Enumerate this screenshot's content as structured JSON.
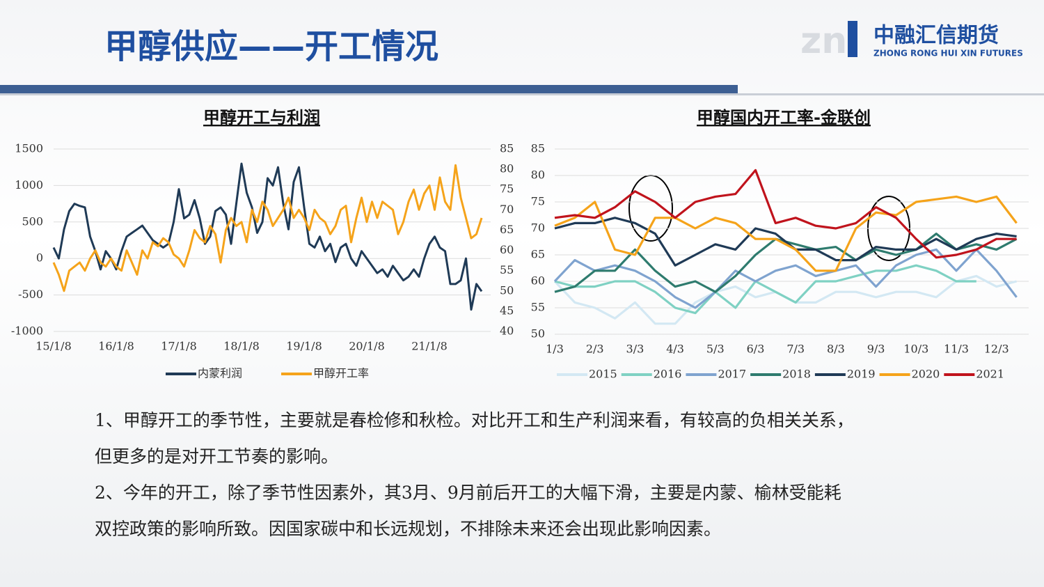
{
  "header": {
    "title": "甲醇供应——开工情况",
    "logo": "中融汇信期货",
    "logo_sub": "ZHONG RONG HUI XIN FUTURES"
  },
  "chart_data": [
    {
      "type": "line",
      "title": "甲醇开工与利润",
      "grid": true,
      "legend": "bottom",
      "categories": [
        "15/1/8",
        null,
        null,
        null,
        null,
        null,
        null,
        null,
        null,
        null,
        null,
        null,
        "16/1/8",
        null,
        null,
        null,
        null,
        null,
        null,
        null,
        null,
        null,
        null,
        null,
        "17/1/8",
        null,
        null,
        null,
        null,
        null,
        null,
        null,
        null,
        null,
        null,
        null,
        "18/1/8",
        null,
        null,
        null,
        null,
        null,
        null,
        null,
        null,
        null,
        null,
        null,
        "19/1/8",
        null,
        null,
        null,
        null,
        null,
        null,
        null,
        null,
        null,
        null,
        null,
        "20/1/8",
        null,
        null,
        null,
        null,
        null,
        null,
        null,
        null,
        null,
        null,
        null,
        "21/1/8",
        null,
        null,
        null,
        null,
        null,
        null,
        null,
        null,
        null,
        null
      ],
      "ylim": [
        -1000,
        1500
      ],
      "yticks": [
        -1000,
        -500,
        0,
        500,
        1000,
        1500
      ],
      "y2lim": [
        40,
        85
      ],
      "y2ticks": [
        40,
        45,
        50,
        55,
        60,
        65,
        70,
        75,
        80,
        85
      ],
      "series": [
        {
          "name": "内蒙利润",
          "color": "#1f3a56",
          "values": [
            150,
            0,
            400,
            650,
            750,
            720,
            700,
            300,
            100,
            -150,
            100,
            0,
            -150,
            100,
            300,
            350,
            400,
            450,
            350,
            250,
            200,
            150,
            200,
            500,
            950,
            550,
            600,
            800,
            550,
            200,
            300,
            650,
            700,
            600,
            200,
            750,
            1300,
            900,
            700,
            350,
            500,
            1100,
            1000,
            1250,
            750,
            400,
            1050,
            1250,
            700,
            200,
            150,
            300,
            100,
            200,
            -50,
            150,
            200,
            0,
            -100,
            100,
            0,
            -100,
            -200,
            -150,
            -250,
            -100,
            -200,
            -300,
            -250,
            -150,
            -250,
            0,
            200,
            300,
            150,
            100,
            -350,
            -350,
            -300,
            0,
            -700,
            -350,
            -450
          ]
        },
        {
          "name": "甲醇开工率",
          "color": "#f5a31a",
          "axis": "y2",
          "values": [
            57,
            54,
            50,
            55,
            56,
            57,
            55,
            58,
            60,
            57,
            56,
            58,
            56,
            55,
            60,
            57,
            54,
            60,
            58,
            62,
            61,
            63,
            62,
            59,
            58,
            56,
            60,
            65,
            63,
            62,
            66,
            64,
            57,
            65,
            68,
            66,
            67,
            62,
            70,
            67,
            72,
            70,
            66,
            68,
            70,
            73,
            68,
            70,
            68,
            65,
            70,
            68,
            67,
            64,
            66,
            70,
            71,
            62,
            68,
            73,
            67,
            72,
            68,
            72,
            71,
            70,
            64,
            67,
            72,
            75,
            70,
            74,
            76,
            70,
            78,
            72,
            70,
            81,
            73,
            68,
            63,
            64,
            68
          ]
        }
      ]
    },
    {
      "type": "line",
      "title": "甲醇国内开工率-金联创",
      "grid": true,
      "legend": "bottom",
      "categories": [
        "1/3",
        null,
        "2/3",
        null,
        "3/3",
        null,
        "4/3",
        null,
        "5/3",
        null,
        "6/3",
        null,
        "7/3",
        null,
        "8/3",
        null,
        "9/3",
        null,
        "10/3",
        null,
        "11/3",
        null,
        "12/3",
        null
      ],
      "ylim": [
        50,
        85
      ],
      "yticks": [
        50,
        55,
        60,
        65,
        70,
        75,
        80,
        85
      ],
      "series": [
        {
          "name": "2015",
          "color": "#d3e8f3",
          "values": [
            60,
            56,
            55,
            53,
            56,
            52,
            52,
            56,
            58,
            59,
            57,
            58,
            56,
            56,
            58,
            58,
            57,
            58,
            58,
            57,
            60,
            61,
            59,
            60
          ]
        },
        {
          "name": "2016",
          "color": "#7fd1c3",
          "values": [
            60,
            59,
            59,
            60,
            60,
            58,
            55,
            54,
            58,
            55,
            60,
            58,
            56,
            60,
            60,
            61,
            62,
            62,
            63,
            62,
            60,
            60,
            null,
            null
          ]
        },
        {
          "name": "2017",
          "color": "#7fa3cf",
          "values": [
            60,
            64,
            62,
            63,
            62,
            60,
            57,
            55,
            58,
            62,
            60,
            62,
            63,
            61,
            62,
            63,
            59,
            63,
            65,
            66,
            62,
            66,
            62,
            57
          ]
        },
        {
          "name": "2018",
          "color": "#2e7b6e",
          "values": [
            58,
            59,
            62,
            62,
            66,
            62,
            59,
            60,
            58,
            61,
            65,
            68,
            67,
            66,
            66.5,
            64,
            66,
            65,
            66,
            69,
            66,
            67,
            66,
            68
          ]
        },
        {
          "name": "2019",
          "color": "#1f3a56",
          "values": [
            70,
            71,
            71,
            72,
            71,
            69,
            63,
            65,
            67,
            66,
            70,
            69,
            66,
            66,
            64,
            64,
            66.5,
            66,
            66,
            68,
            66,
            68,
            69,
            68.5
          ]
        },
        {
          "name": "2020",
          "color": "#f5a31a",
          "values": [
            70.5,
            72,
            75,
            66,
            65,
            72,
            72,
            70,
            72,
            71,
            68,
            68,
            66,
            62,
            62,
            70,
            73,
            72.5,
            75,
            75.5,
            76,
            75,
            76,
            71
          ]
        },
        {
          "name": "2021",
          "color": "#c0131c",
          "values": [
            72,
            72.5,
            72,
            74,
            77,
            75,
            72,
            75,
            76,
            76.5,
            81,
            71,
            72,
            70.5,
            70,
            71,
            74,
            72,
            68,
            64.5,
            65,
            66,
            68,
            68
          ]
        }
      ]
    }
  ],
  "text": {
    "lines": [
      "1、甲醇开工的季节性，主要就是春检修和秋检。对比开工和生产利润来看，有较高的负相关关系，",
      "但更多的是对开工节奏的影响。",
      "2、今年的开工，除了季节性因素外，其3月、9月前后开工的大幅下滑，主要是内蒙、榆林受能耗",
      "双控政策的影响所致。因国家碳中和长远规划，不排除未来还会出现此影响因素。"
    ]
  }
}
